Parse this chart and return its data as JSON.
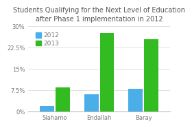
{
  "title": "Students Qualifying for the Next Level of Education\nafter Phase 1 implementation in 2012",
  "categories": [
    "Siahamo",
    "Endallah",
    "Baray"
  ],
  "values_2012": [
    2.0,
    6.0,
    8.0
  ],
  "values_2013": [
    8.5,
    27.5,
    25.5
  ],
  "color_2012": "#4aaee8",
  "color_2013": "#33bb22",
  "ylim": [
    0,
    30
  ],
  "yticks": [
    0,
    7.5,
    15,
    22.5,
    30
  ],
  "ytick_labels": [
    "0%",
    "7.5%",
    "15%",
    "22.5%",
    "30%"
  ],
  "legend_labels": [
    "2012",
    "2013"
  ],
  "bar_width": 0.32,
  "background_color": "#ffffff",
  "plot_bg_color": "#ffffff",
  "grid_color": "#dddddd",
  "title_fontsize": 7.0,
  "tick_fontsize": 6.0,
  "legend_fontsize": 6.5,
  "title_color": "#555555",
  "tick_color": "#777777"
}
